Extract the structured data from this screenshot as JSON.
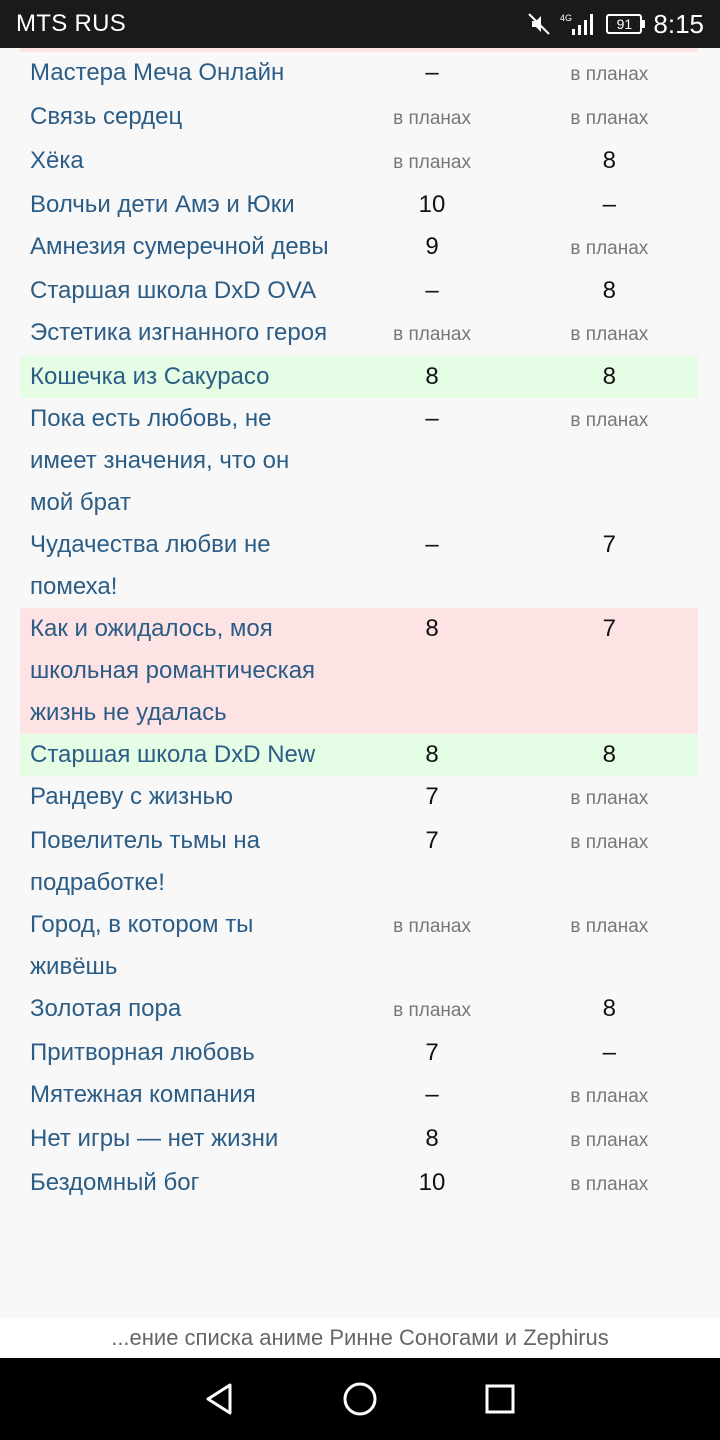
{
  "status_bar": {
    "carrier": "MTS RUS",
    "network": "4G",
    "battery": "91",
    "time": "8:15"
  },
  "table": {
    "rows": [
      {
        "title": "Мастера Меча Онлайн",
        "a": "–",
        "b": "в планах",
        "tone": "none"
      },
      {
        "title": "Связь сердец",
        "a": "в планах",
        "b": "в планах",
        "tone": "none"
      },
      {
        "title": "Хёка",
        "a": "в планах",
        "b": "8",
        "tone": "none"
      },
      {
        "title": "Волчьи дети Амэ и Юки",
        "a": "10",
        "b": "–",
        "tone": "none"
      },
      {
        "title": "Амнезия сумеречной девы",
        "a": "9",
        "b": "в планах",
        "tone": "none"
      },
      {
        "title": "Старшая школа DxD OVA",
        "a": "–",
        "b": "8",
        "tone": "none"
      },
      {
        "title": "Эстетика изгнанного героя",
        "a": "в планах",
        "b": "в планах",
        "tone": "none"
      },
      {
        "title": "Кошечка из Сакурасо",
        "a": "8",
        "b": "8",
        "tone": "green"
      },
      {
        "title": "Пока есть любовь, не имеет значения, что он мой брат",
        "a": "–",
        "b": "в планах",
        "tone": "none"
      },
      {
        "title": "Чудачества любви не помеха!",
        "a": "–",
        "b": "7",
        "tone": "none"
      },
      {
        "title": "Как и ожидалось, моя школьная романтическая жизнь не удалась",
        "a": "8",
        "b": "7",
        "tone": "red"
      },
      {
        "title": "Старшая школа DxD New",
        "a": "8",
        "b": "8",
        "tone": "green"
      },
      {
        "title": "Рандеву с жизнью",
        "a": "7",
        "b": "в планах",
        "tone": "none"
      },
      {
        "title": "Повелитель тьмы на подработке!",
        "a": "7",
        "b": "в планах",
        "tone": "none"
      },
      {
        "title": "Город, в котором ты живёшь",
        "a": "в планах",
        "b": "в планах",
        "tone": "none"
      },
      {
        "title": "Золотая пора",
        "a": "в планах",
        "b": "8",
        "tone": "none"
      },
      {
        "title": "Притворная любовь",
        "a": "7",
        "b": "–",
        "tone": "none"
      },
      {
        "title": "Мятежная компания",
        "a": "–",
        "b": "в планах",
        "tone": "none"
      },
      {
        "title": "Нет игры — нет жизни",
        "a": "8",
        "b": "в планах",
        "tone": "none"
      },
      {
        "title": "Бездомный бог",
        "a": "10",
        "b": "в планах",
        "tone": "none"
      }
    ]
  },
  "caption": "...ение списка аниме Ринне Соногами и Zephirus",
  "colors": {
    "link": "#2b5d86",
    "row_green": "#e6fde5",
    "row_red": "#fde3e3"
  }
}
